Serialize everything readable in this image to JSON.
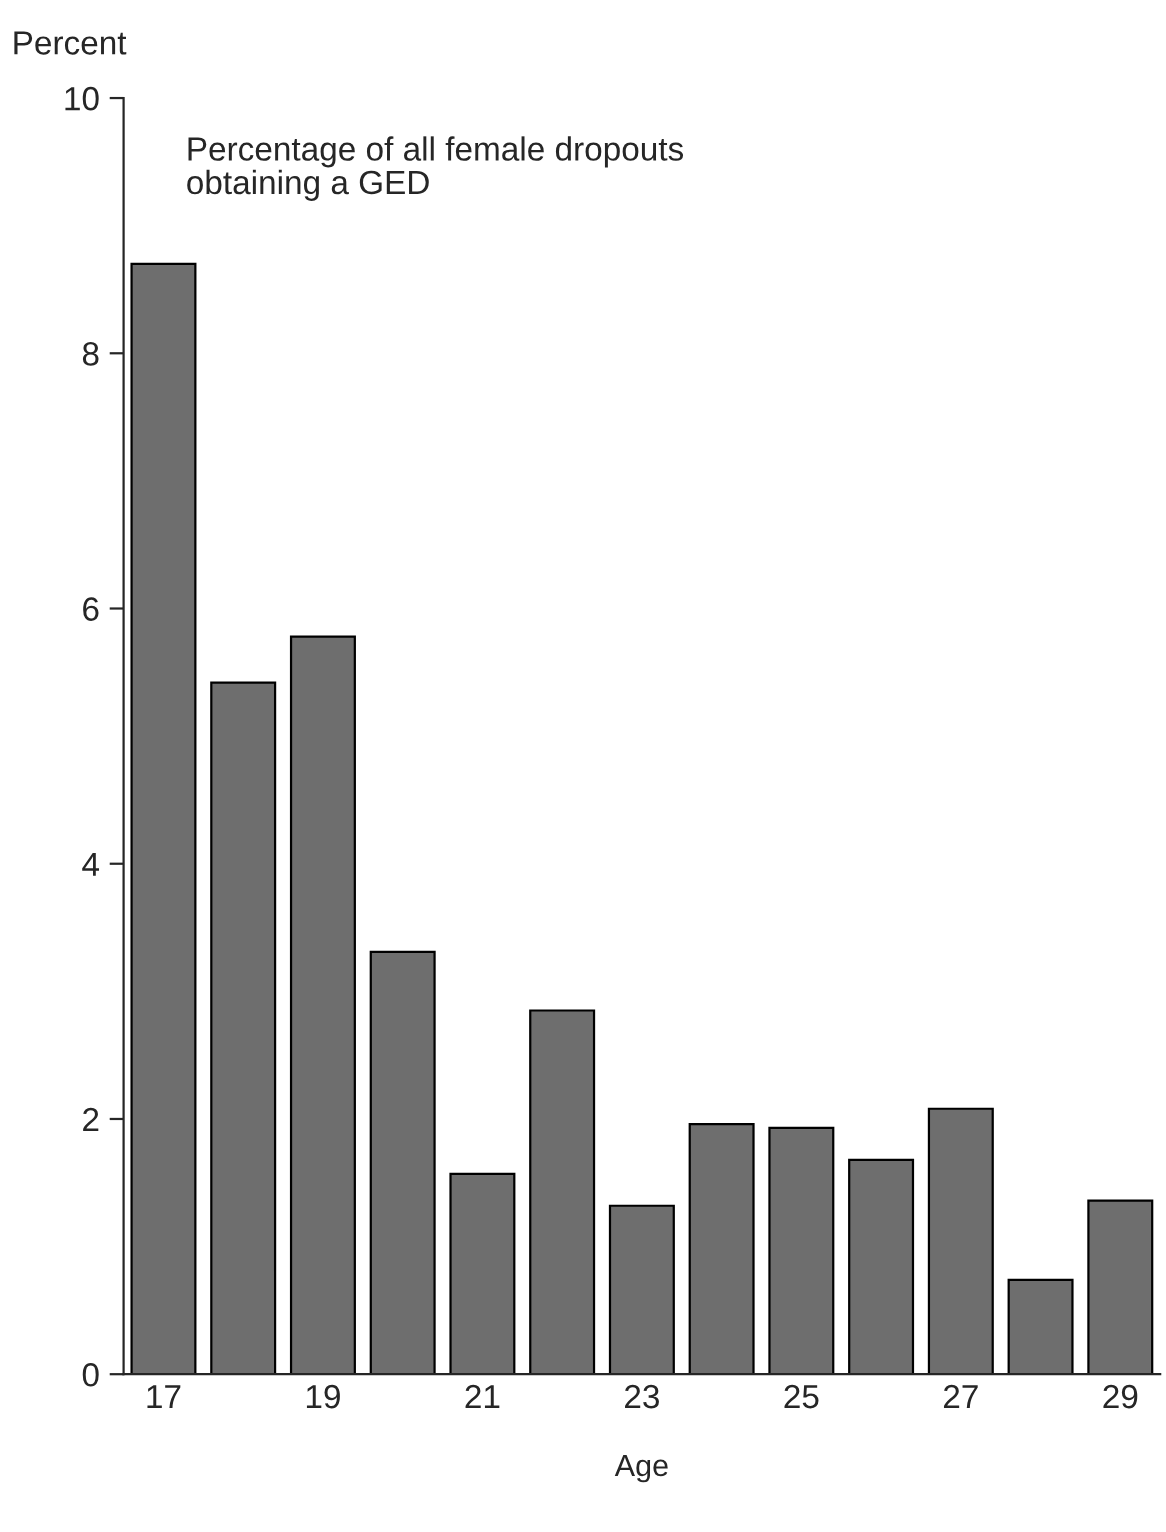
{
  "chart_data": {
    "type": "bar",
    "categories": [
      "17",
      null,
      "19",
      null,
      "21",
      null,
      "23",
      null,
      "25",
      null,
      "27",
      null,
      "29"
    ],
    "values": [
      8.7,
      5.42,
      5.78,
      3.31,
      1.57,
      2.85,
      1.32,
      1.96,
      1.93,
      1.68,
      2.08,
      0.74,
      1.36
    ],
    "color": "#6e6e6e",
    "ylabel": "Percent",
    "xlabel": "Age",
    "annotations": [
      "Percentage of all female dropouts\nobtaining a GED"
    ],
    "ylim": [
      0,
      10
    ],
    "yticks": [
      0,
      2,
      4,
      6,
      8,
      10
    ],
    "grid": false
  }
}
